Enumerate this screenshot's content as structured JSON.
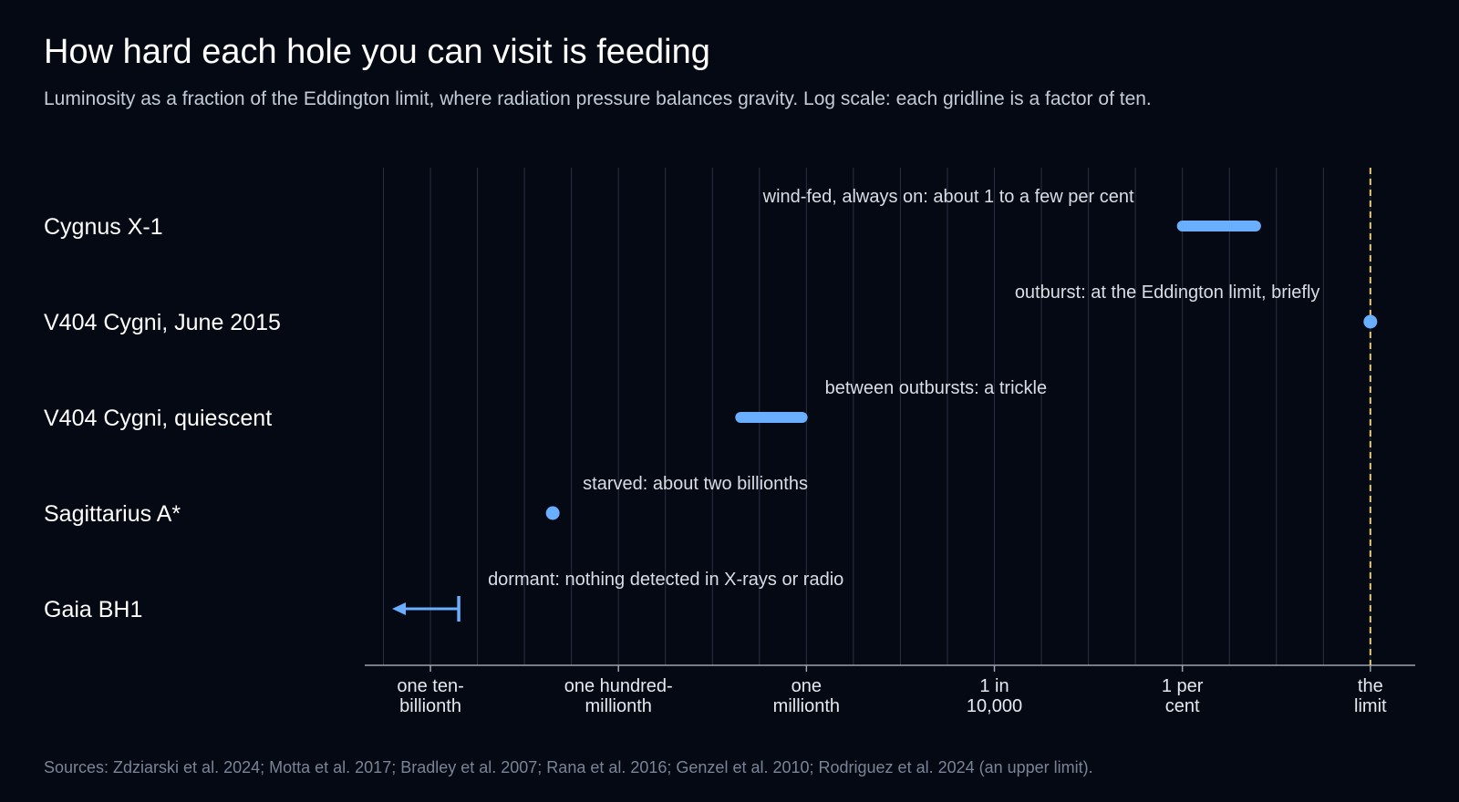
{
  "title": "How hard each hole you can visit is feeding",
  "subtitle": "Luminosity as a fraction of the Eddington limit, where radiation pressure balances gravity. Log scale: each gridline is a factor of ten.",
  "source": "Sources: Zdziarski et al. 2024; Motta et al. 2017; Bradley et al. 2007; Rana et al. 2016; Genzel et al. 2010; Rodriguez et al. 2024 (an upper limit).",
  "colors": {
    "background": "#050913",
    "marker": "#6aaeff",
    "limit_line": "#e8c870",
    "gridline": "#2a3142",
    "axis": "#9aa3b2"
  },
  "chart_data": {
    "type": "range-dot",
    "orientation": "horizontal",
    "x_scale": "log",
    "xlim": [
      2e-11,
      3
    ],
    "grid": true,
    "x_ticks": [
      {
        "value": 1e-10,
        "label": [
          "one ten-",
          "billionth"
        ]
      },
      {
        "value": 1e-08,
        "label": [
          "one hundred-",
          "millionth"
        ]
      },
      {
        "value": 1e-06,
        "label": [
          "one",
          "millionth"
        ]
      },
      {
        "value": 0.0001,
        "label": [
          "1 in",
          "10,000"
        ]
      },
      {
        "value": 0.01,
        "label": [
          "1 per",
          "cent"
        ]
      },
      {
        "value": 1,
        "label": [
          "the",
          "limit"
        ]
      }
    ],
    "reference_line": {
      "value": 1,
      "style": "dashed"
    },
    "rows": [
      {
        "label": "Cygnus X-1",
        "kind": "range",
        "low": 0.01,
        "high": 0.06,
        "annotation": "wind-fed, always on: about 1 to a few per cent"
      },
      {
        "label": "V404 Cygni, June 2015",
        "kind": "point",
        "value": 1,
        "annotation": "outburst: at the Eddington limit, briefly"
      },
      {
        "label": "V404 Cygni, quiescent",
        "kind": "range",
        "low": 2e-07,
        "high": 9e-07,
        "annotation": "between outbursts: a trickle"
      },
      {
        "label": "Sagittarius A*",
        "kind": "point",
        "value": 2e-09,
        "annotation": "starved: about two billionths"
      },
      {
        "label": "Gaia BH1",
        "kind": "upper-limit",
        "value": 2e-10,
        "annotation": "dormant: nothing detected in X-rays or radio"
      }
    ]
  }
}
